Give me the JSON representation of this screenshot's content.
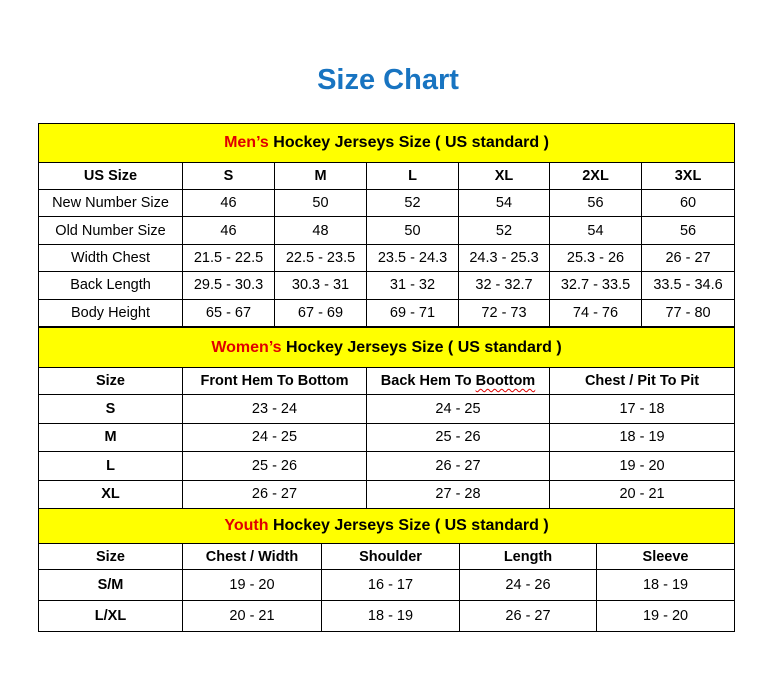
{
  "title": "Size Chart",
  "colors": {
    "title": "#1874c1",
    "section_bg": "#ffff00",
    "accent_red": "#e00000"
  },
  "men": {
    "heading_prefix": "Men’s",
    "heading_rest": " Hockey Jerseys Size ( US standard )",
    "columns": [
      "US Size",
      "S",
      "M",
      "L",
      "XL",
      "2XL",
      "3XL"
    ],
    "rows": [
      [
        "New Number Size",
        "46",
        "50",
        "52",
        "54",
        "56",
        "60"
      ],
      [
        "Old Number Size",
        "46",
        "48",
        "50",
        "52",
        "54",
        "56"
      ],
      [
        "Width Chest",
        "21.5 - 22.5",
        "22.5 - 23.5",
        "23.5 - 24.3",
        "24.3 - 25.3",
        "25.3 - 26",
        "26 - 27"
      ],
      [
        "Back Length",
        "29.5 - 30.3",
        "30.3 - 31",
        "31 - 32",
        "32 - 32.7",
        "32.7 - 33.5",
        "33.5 - 34.6"
      ],
      [
        "Body Height",
        "65 - 67",
        "67 - 69",
        "69 - 71",
        "72 - 73",
        "74 - 76",
        "77 - 80"
      ]
    ]
  },
  "women": {
    "heading_prefix": "Women’s",
    "heading_rest": " Hockey Jerseys Size ( US standard )",
    "columns": [
      "Size",
      "Front Hem To Bottom",
      "Back Hem To ",
      "Chest / Pit To Pit"
    ],
    "columns_misspelled_word": "Boottom",
    "rows": [
      [
        "S",
        "23 - 24",
        "24 - 25",
        "17 - 18"
      ],
      [
        "M",
        "24 - 25",
        "25 - 26",
        "18 - 19"
      ],
      [
        "L",
        "25 - 26",
        "26 - 27",
        "19 - 20"
      ],
      [
        "XL",
        "26 - 27",
        "27 - 28",
        "20 - 21"
      ]
    ]
  },
  "youth": {
    "heading_prefix": "Youth",
    "heading_rest": " Hockey Jerseys Size ( US standard )",
    "columns": [
      "Size",
      "Chest / Width",
      "Shoulder",
      "Length",
      "Sleeve"
    ],
    "rows": [
      [
        "S/M",
        "19 - 20",
        "16 - 17",
        "24 - 26",
        "18 - 19"
      ],
      [
        "L/XL",
        "20 - 21",
        "18 - 19",
        "26 - 27",
        "19 - 20"
      ]
    ]
  }
}
